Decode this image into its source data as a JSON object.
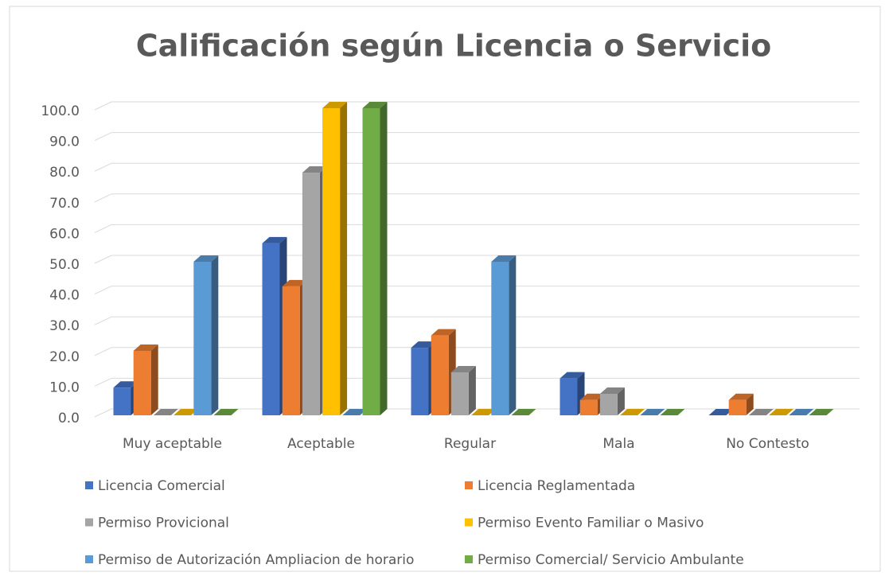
{
  "chart_data": {
    "type": "bar3d",
    "title": "Calificación según Licencia o Servicio",
    "categories": [
      "Muy aceptable",
      "Aceptable",
      "Regular",
      "Mala",
      "No Contesto"
    ],
    "series": [
      {
        "name": "Licencia Comercial",
        "color": "#4472c4",
        "values": [
          9,
          56,
          22,
          12,
          0
        ]
      },
      {
        "name": "Licencia Reglamentada",
        "color": "#ed7d31",
        "values": [
          21,
          42,
          26,
          5,
          5
        ]
      },
      {
        "name": "Permiso Provicional",
        "color": "#a5a5a5",
        "values": [
          0,
          79,
          14,
          7,
          0
        ]
      },
      {
        "name": "Permiso Evento Familiar o Masivo",
        "color": "#ffc000",
        "values": [
          0,
          100,
          0,
          0,
          0
        ]
      },
      {
        "name": "Permiso de Autorización Ampliacion de horario",
        "color": "#5b9bd5",
        "values": [
          50,
          0,
          50,
          0,
          0
        ]
      },
      {
        "name": "Permiso Comercial/ Servicio Ambulante",
        "color": "#70ad47",
        "values": [
          0,
          100,
          0,
          0,
          0
        ]
      }
    ],
    "ylim": [
      0,
      100
    ],
    "yticks": [
      {
        "value": 0,
        "label": "0.0"
      },
      {
        "value": 10,
        "label": "10.0"
      },
      {
        "value": 20,
        "label": "20.0"
      },
      {
        "value": 30,
        "label": "30.0"
      },
      {
        "value": 40,
        "label": "40.0"
      },
      {
        "value": 50,
        "label": "50.0"
      },
      {
        "value": 60,
        "label": "60.0"
      },
      {
        "value": 70,
        "label": "70.0"
      },
      {
        "value": 80,
        "label": "80.0"
      },
      {
        "value": 90,
        "label": "90.0"
      },
      {
        "value": 100,
        "label": "100.0"
      }
    ],
    "grid": true,
    "legend": "bottom"
  }
}
